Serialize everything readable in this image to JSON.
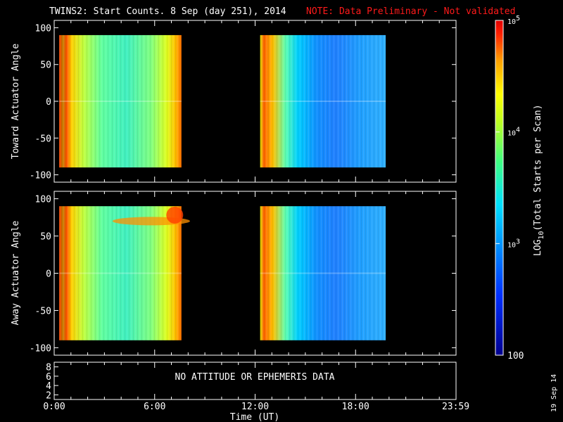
{
  "title": {
    "main": "TWINS2: Start Counts.  8 Sep (day 251), 2014",
    "note": "NOTE: Data Preliminary - Not validated",
    "note_color": "#ff1a1a"
  },
  "footer": {
    "date_stamp": "19 Sep 14",
    "xlabel": "Time (UT)"
  },
  "chart_data": [
    {
      "type": "heatmap",
      "ylabel": "Toward Actuator Angle",
      "ylim": [
        -110,
        110
      ],
      "yticks": [
        "100",
        "50",
        "0",
        "-50",
        "-100"
      ],
      "xticks": [
        "0:00",
        "6:00",
        "12:00",
        "18:00",
        "23:59"
      ],
      "xlim_hours": [
        0,
        24
      ],
      "data_coverage_hours": [
        [
          0.3,
          7.6
        ],
        [
          12.3,
          19.8
        ]
      ],
      "angle_coverage": [
        -90,
        90
      ],
      "colormap": "rainbow",
      "dominant_levels": {
        "segment1": "~10^3.5 (green/yellow)",
        "segment2": "~10^2.8 (blue)"
      }
    },
    {
      "type": "heatmap",
      "ylabel": "Away Actuator Angle",
      "ylim": [
        -110,
        110
      ],
      "yticks": [
        "100",
        "50",
        "0",
        "-50",
        "-100"
      ],
      "xticks": [
        "0:00",
        "6:00",
        "12:00",
        "18:00",
        "23:59"
      ],
      "xlim_hours": [
        0,
        24
      ],
      "data_coverage_hours": [
        [
          0.3,
          7.6
        ],
        [
          12.3,
          19.8
        ]
      ],
      "angle_coverage": [
        -90,
        90
      ],
      "colormap": "rainbow"
    },
    {
      "type": "line",
      "yticks": [
        "8",
        "6",
        "4",
        "2"
      ],
      "message": "NO ATTITUDE OR EPHEMERIS DATA"
    }
  ],
  "colorbar": {
    "label_prefix": "LOG",
    "label_sub": "10",
    "label_suffix": "(Total Starts per Scan)",
    "ticks": [
      {
        "base": "10",
        "exp": "5"
      },
      {
        "base": "10",
        "exp": "4"
      },
      {
        "base": "10",
        "exp": "3"
      }
    ],
    "bottom_label": "100",
    "range_log": [
      2,
      5
    ]
  }
}
